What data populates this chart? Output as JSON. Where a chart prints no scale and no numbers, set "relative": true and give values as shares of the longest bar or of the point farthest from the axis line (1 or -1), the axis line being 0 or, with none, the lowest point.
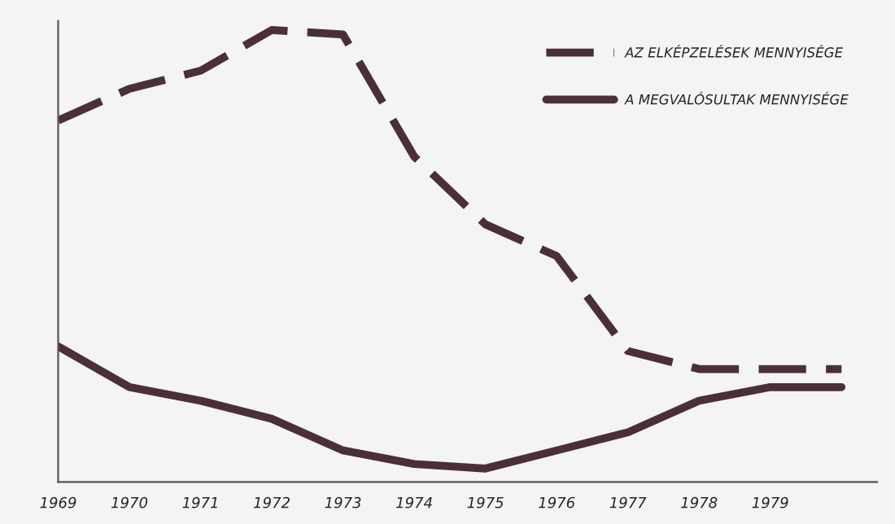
{
  "chart_data": {
    "type": "line",
    "relative": true,
    "categories": [
      "1969",
      "1970",
      "1971",
      "1972",
      "1973",
      "1974",
      "1975",
      "1976",
      "1977",
      "1978",
      "1979",
      null
    ],
    "series": [
      {
        "name": "AZ ELKÉPZELÉSEK MENNYISÉGE",
        "color": "#4a3035",
        "line_style": "dashed",
        "values": [
          0.8,
          0.87,
          0.91,
          1.0,
          0.99,
          0.72,
          0.57,
          0.5,
          0.29,
          0.25,
          0.25,
          0.25
        ]
      },
      {
        "name": "A MEGVALÓSULTAK MENNYISÉGE",
        "color": "#4a3035",
        "line_style": "solid",
        "values": [
          0.3,
          0.21,
          0.18,
          0.14,
          0.07,
          0.04,
          0.03,
          0.07,
          0.11,
          0.18,
          0.21,
          0.21
        ]
      }
    ],
    "legend": "top right",
    "grid": false,
    "marker": "none"
  }
}
